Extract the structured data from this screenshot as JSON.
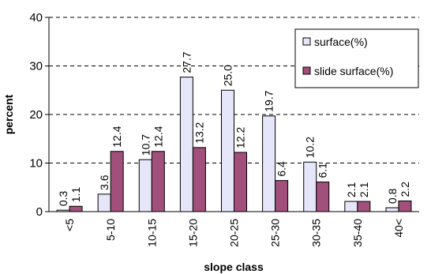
{
  "chart_data": {
    "type": "bar",
    "categories": [
      "<5",
      "5-10",
      "10-15",
      "15-20",
      "20-25",
      "25-30",
      "30-35",
      "35-40",
      "40<"
    ],
    "series": [
      {
        "name": "surface(%)",
        "values": [
          0.3,
          3.6,
          10.7,
          27.7,
          25.0,
          19.7,
          10.2,
          2.1,
          0.8
        ],
        "labels": [
          "0.3",
          "3.6",
          "10.7",
          "27.7",
          "25.0",
          "19.7",
          "10.2",
          "2.1",
          "0.8"
        ],
        "color": "#E6E6FA"
      },
      {
        "name": "slide surface(%)",
        "values": [
          1.1,
          12.4,
          12.4,
          13.2,
          12.2,
          6.4,
          6.1,
          2.1,
          2.2
        ],
        "labels": [
          "1.1",
          "12.4",
          "12.4",
          "13.2",
          "12.2",
          "6.4",
          "6.1",
          "2.1",
          "2.2"
        ],
        "color": "#A0507A"
      }
    ],
    "xlabel": "slope class",
    "ylabel": "percent",
    "ylim": [
      0,
      40
    ],
    "yticks": [
      "0",
      "10",
      "20",
      "30",
      "40"
    ],
    "grid": true,
    "legend_position": "top-right"
  }
}
